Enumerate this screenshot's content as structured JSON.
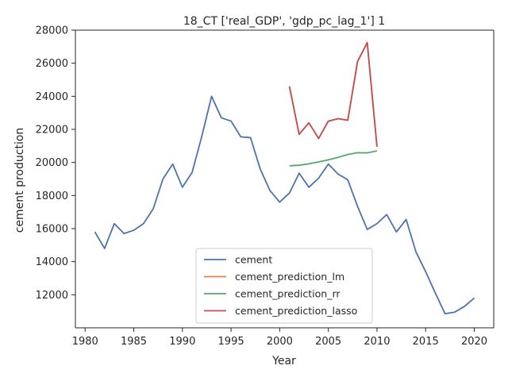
{
  "chart_data": {
    "type": "line",
    "title": "18_CT ['real_GDP', 'gdp_pc_lag_1'] 1",
    "xlabel": "Year",
    "ylabel": "cement production",
    "xlim": [
      1979,
      2022
    ],
    "ylim": [
      10000,
      28000
    ],
    "xticks": [
      1980,
      1985,
      1990,
      1995,
      2000,
      2005,
      2010,
      2015,
      2020
    ],
    "yticks": [
      12000,
      14000,
      16000,
      18000,
      20000,
      22000,
      24000,
      26000,
      28000
    ],
    "grid": false,
    "legend_position": "lower-center",
    "series": [
      {
        "name": "cement",
        "color": "#4c72b0",
        "x": [
          1981,
          1982,
          1983,
          1984,
          1985,
          1986,
          1987,
          1988,
          1989,
          1990,
          1991,
          1992,
          1993,
          1994,
          1995,
          1996,
          1997,
          1998,
          1999,
          2000,
          2001,
          2002,
          2003,
          2004,
          2005,
          2006,
          2007,
          2008,
          2009,
          2010,
          2011,
          2012,
          2013,
          2014,
          2015,
          2016,
          2017,
          2018,
          2019,
          2020
        ],
        "y": [
          15800,
          14800,
          16300,
          15700,
          15900,
          16300,
          17200,
          19000,
          19900,
          18500,
          19400,
          21600,
          24000,
          22700,
          22500,
          21550,
          21500,
          19600,
          18300,
          17600,
          18150,
          19350,
          18500,
          19050,
          19900,
          19300,
          18950,
          17350,
          15950,
          16300,
          16850,
          15800,
          16550,
          14600,
          13400,
          12100,
          10850,
          10950,
          11300,
          11800
        ]
      },
      {
        "name": "cement_prediction_lm",
        "color": "#dd8452",
        "x": [
          2001,
          2002,
          2003,
          2004,
          2005,
          2006,
          2007,
          2008,
          2009,
          2010
        ],
        "y": [
          24600,
          21700,
          22400,
          21450,
          22500,
          22650,
          22550,
          26100,
          27250,
          20950
        ]
      },
      {
        "name": "cement_prediction_rr",
        "color": "#55a868",
        "x": [
          2001,
          2002,
          2003,
          2004,
          2005,
          2006,
          2007,
          2008,
          2009,
          2010
        ],
        "y": [
          19800,
          19830,
          19920,
          20030,
          20160,
          20310,
          20480,
          20590,
          20580,
          20700
        ]
      },
      {
        "name": "cement_prediction_lasso",
        "color": "#c44e52",
        "x": [
          2001,
          2002,
          2003,
          2004,
          2005,
          2006,
          2007,
          2008,
          2009,
          2010
        ],
        "y": [
          24600,
          21700,
          22400,
          21450,
          22500,
          22650,
          22550,
          26100,
          27250,
          20950
        ]
      }
    ]
  }
}
